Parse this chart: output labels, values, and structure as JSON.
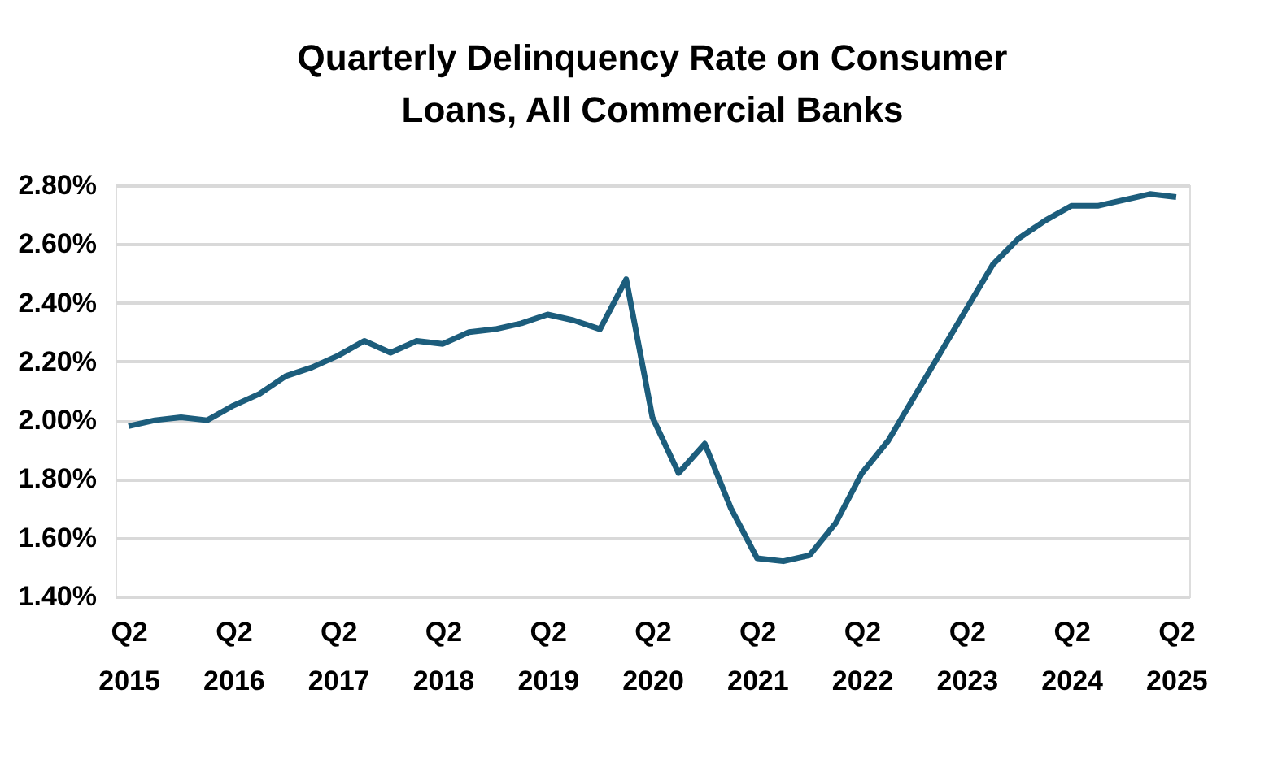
{
  "chart_data": {
    "type": "line",
    "title": "Quarterly Delinquency Rate on Consumer Loans, All Commercial Banks",
    "categories": [
      "Q2 2015",
      null,
      null,
      null,
      "Q2 2016",
      null,
      null,
      null,
      "Q2 2017",
      null,
      null,
      null,
      "Q2 2018",
      null,
      null,
      null,
      "Q2 2019",
      null,
      null,
      null,
      "Q2 2020",
      null,
      null,
      null,
      "Q2 2021",
      null,
      null,
      null,
      "Q2 2022",
      null,
      null,
      null,
      "Q2 2023",
      null,
      null,
      null,
      "Q2 2024",
      null,
      null,
      null,
      "Q2 2025"
    ],
    "series": [
      {
        "color": "#1c5d7c",
        "values": [
          1.98,
          2.0,
          2.01,
          2.0,
          2.05,
          2.09,
          2.15,
          2.18,
          2.22,
          2.27,
          2.23,
          2.27,
          2.26,
          2.3,
          2.31,
          2.33,
          2.36,
          2.34,
          2.31,
          2.48,
          2.01,
          1.82,
          1.92,
          1.7,
          1.53,
          1.52,
          1.54,
          1.65,
          1.82,
          1.93,
          2.08,
          2.23,
          2.38,
          2.53,
          2.62,
          2.68,
          2.73,
          2.73,
          2.75,
          2.77,
          2.76
        ]
      }
    ],
    "ylim": [
      1.4,
      2.8
    ],
    "yticks": [
      {
        "value": 1.4,
        "label": "1.40%"
      },
      {
        "value": 1.6,
        "label": "1.60%"
      },
      {
        "value": 1.8,
        "label": "1.80%"
      },
      {
        "value": 2.0,
        "label": "2.00%"
      },
      {
        "value": 2.2,
        "label": "2.20%"
      },
      {
        "value": 2.4,
        "label": "2.40%"
      },
      {
        "value": 2.6,
        "label": "2.60%"
      },
      {
        "value": 2.8,
        "label": "2.80%"
      }
    ],
    "grid": "y",
    "marker": "none",
    "line_style": "solid"
  }
}
